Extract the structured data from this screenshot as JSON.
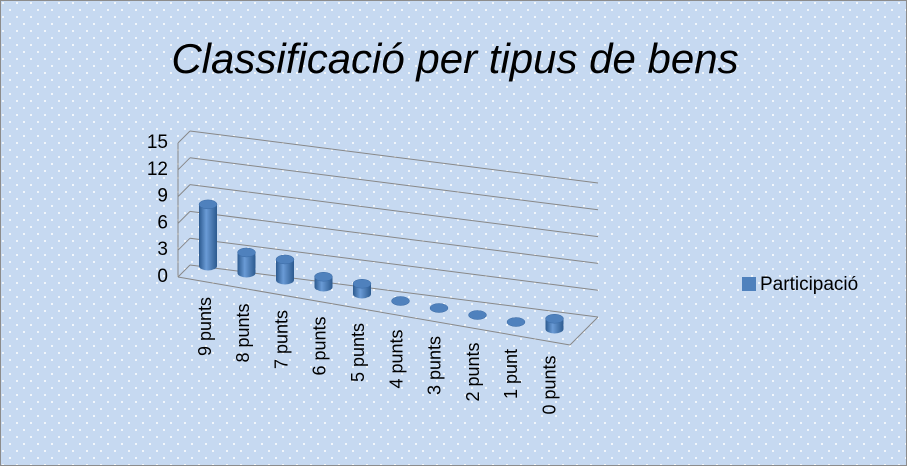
{
  "chart_data": {
    "type": "bar3d",
    "title": "Classificació per tipus de bens",
    "categories": [
      "9 punts",
      "8 punts",
      "7 punts",
      "6 punts",
      "5 punts",
      "4 punts",
      "3 punts",
      "2 punts",
      "1 punt",
      "0 punts"
    ],
    "series": [
      {
        "name": "Participació",
        "color": "#4f81bd",
        "values": [
          6,
          2,
          2,
          1,
          1,
          0,
          0,
          0,
          0,
          1
        ]
      }
    ],
    "ylim": [
      0,
      15
    ],
    "yticks": [
      0,
      3,
      6,
      9,
      12,
      15
    ],
    "grid": true,
    "legend": "right"
  }
}
